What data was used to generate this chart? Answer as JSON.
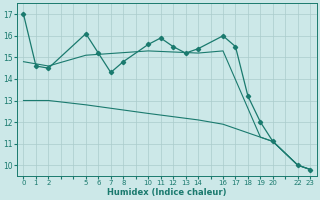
{
  "xlabel": "Humidex (Indice chaleur)",
  "bg_color": "#cce8e8",
  "grid_color": "#aacccc",
  "line_color": "#1a7a6e",
  "xtick_labels": [
    0,
    1,
    2,
    5,
    6,
    7,
    8,
    10,
    11,
    12,
    13,
    14,
    16,
    17,
    18,
    19,
    20,
    22,
    23
  ],
  "xgrid_ticks": [
    0,
    1,
    2,
    3,
    4,
    5,
    6,
    7,
    8,
    9,
    10,
    11,
    12,
    13,
    14,
    15,
    16,
    17,
    18,
    19,
    20,
    21,
    22,
    23
  ],
  "xlim": [
    -0.5,
    23.5
  ],
  "ylim": [
    9.5,
    17.5
  ],
  "yticks": [
    10,
    11,
    12,
    13,
    14,
    15,
    16,
    17
  ],
  "line1_x": [
    0,
    1,
    2,
    5,
    6,
    7,
    8,
    10,
    11,
    12,
    13,
    14,
    16,
    17,
    18,
    19,
    20,
    22,
    23
  ],
  "line1_y": [
    17.0,
    14.6,
    14.5,
    16.1,
    15.2,
    14.3,
    14.8,
    15.6,
    15.9,
    15.5,
    15.2,
    15.4,
    16.0,
    15.5,
    13.2,
    12.0,
    11.1,
    10.0,
    9.8
  ],
  "line2_x": [
    0,
    2,
    5,
    10,
    14,
    16,
    19,
    20,
    22,
    23
  ],
  "line2_y": [
    14.8,
    14.6,
    15.1,
    15.3,
    15.2,
    15.3,
    11.3,
    11.1,
    10.0,
    9.8
  ],
  "line3_x": [
    0,
    2,
    5,
    10,
    14,
    16,
    19,
    20,
    22,
    23
  ],
  "line3_y": [
    13.0,
    13.0,
    12.8,
    12.4,
    12.1,
    11.9,
    11.3,
    11.1,
    10.0,
    9.8
  ]
}
